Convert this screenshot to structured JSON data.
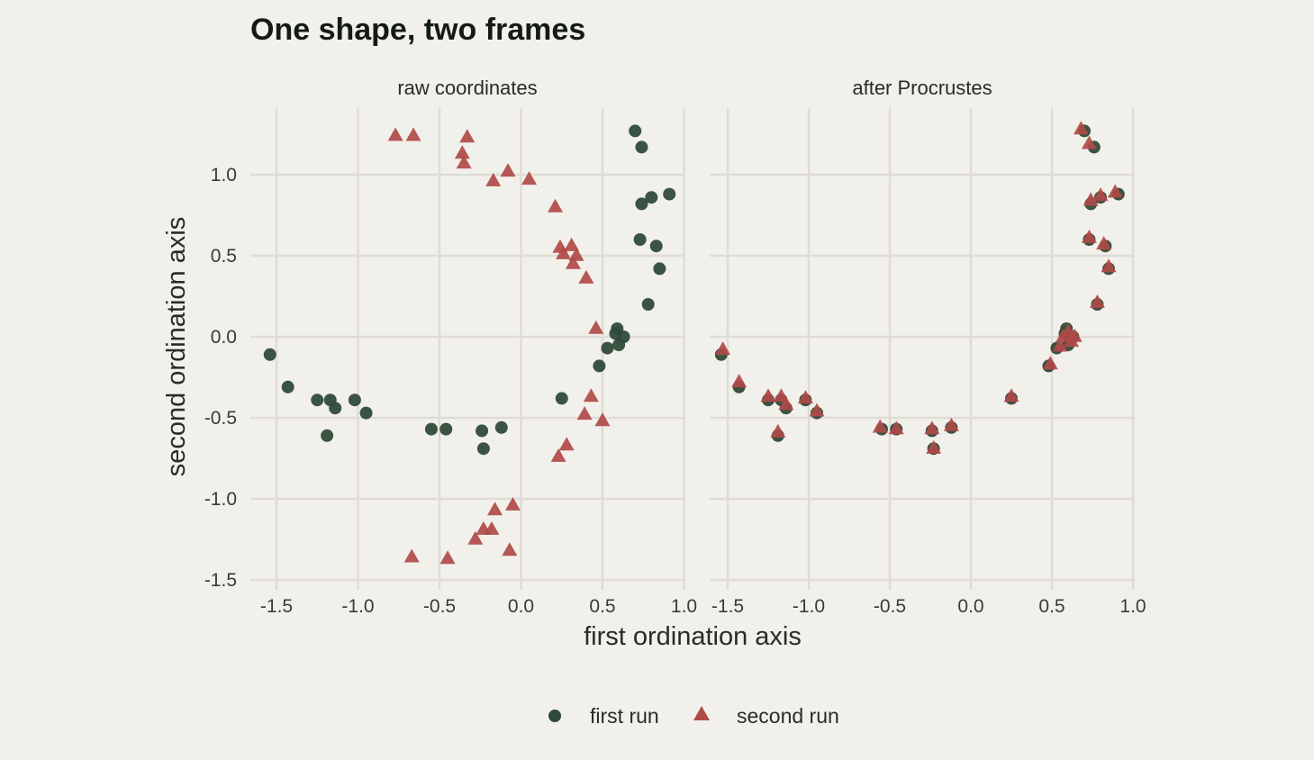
{
  "title": "One shape, two frames",
  "colors": {
    "first_run": "#2f4a3a",
    "second_run": "#b04a48",
    "background": "#f2f0ea",
    "grid": "#dedcd5"
  },
  "chart_data": {
    "type": "scatter",
    "title": "One shape, two frames",
    "xlabel": "first ordination axis",
    "ylabel": "second ordination axis",
    "xlim": [
      -1.6,
      1.0
    ],
    "ylim": [
      -1.5,
      1.4
    ],
    "x_ticks": [
      -1.5,
      -1.0,
      -0.5,
      0.0,
      0.5,
      1.0
    ],
    "x_tick_labels": [
      "-1.5",
      "-1.0",
      "-0.5",
      "0.0",
      "0.5",
      "1.0"
    ],
    "y_ticks": [
      -1.5,
      -1.0,
      -0.5,
      0.0,
      0.5,
      1.0
    ],
    "y_tick_labels": [
      "-1.5",
      "-1.0",
      "-0.5",
      "0.0",
      "0.5",
      "1.0"
    ],
    "grid": true,
    "legend_position": "bottom",
    "legend": [
      {
        "label": "first run",
        "shape": "circle",
        "color": "#2f4a3a"
      },
      {
        "label": "second run",
        "shape": "triangle",
        "color": "#b04a48"
      }
    ],
    "panels": [
      {
        "label": "raw coordinates",
        "series": [
          {
            "name": "first run",
            "shape": "circle",
            "color": "#2f4a3a",
            "points": [
              [
                -1.54,
                -0.11
              ],
              [
                -1.43,
                -0.31
              ],
              [
                -1.25,
                -0.39
              ],
              [
                -1.17,
                -0.39
              ],
              [
                -1.14,
                -0.44
              ],
              [
                -1.19,
                -0.61
              ],
              [
                -1.02,
                -0.39
              ],
              [
                -0.95,
                -0.47
              ],
              [
                -0.55,
                -0.57
              ],
              [
                -0.46,
                -0.57
              ],
              [
                -0.24,
                -0.58
              ],
              [
                -0.23,
                -0.69
              ],
              [
                -0.12,
                -0.56
              ],
              [
                0.25,
                -0.38
              ],
              [
                0.48,
                -0.18
              ],
              [
                0.53,
                -0.07
              ],
              [
                0.58,
                0.02
              ],
              [
                0.59,
                0.05
              ],
              [
                0.6,
                -0.05
              ],
              [
                0.63,
                0.0
              ],
              [
                0.7,
                1.27
              ],
              [
                0.74,
                1.17
              ],
              [
                0.74,
                0.82
              ],
              [
                0.8,
                0.86
              ],
              [
                0.91,
                0.88
              ],
              [
                0.73,
                0.6
              ],
              [
                0.83,
                0.56
              ],
              [
                0.85,
                0.42
              ],
              [
                0.78,
                0.2
              ]
            ]
          },
          {
            "name": "second run",
            "shape": "triangle",
            "color": "#b04a48",
            "points": [
              [
                -0.77,
                1.24
              ],
              [
                -0.66,
                1.24
              ],
              [
                -0.33,
                1.23
              ],
              [
                -0.36,
                1.13
              ],
              [
                -0.35,
                1.07
              ],
              [
                -0.08,
                1.02
              ],
              [
                -0.17,
                0.96
              ],
              [
                0.05,
                0.97
              ],
              [
                0.21,
                0.8
              ],
              [
                0.24,
                0.55
              ],
              [
                0.26,
                0.51
              ],
              [
                0.31,
                0.56
              ],
              [
                0.34,
                0.5
              ],
              [
                0.32,
                0.45
              ],
              [
                0.4,
                0.36
              ],
              [
                0.46,
                0.05
              ],
              [
                0.43,
                -0.37
              ],
              [
                0.39,
                -0.48
              ],
              [
                0.5,
                -0.52
              ],
              [
                0.28,
                -0.67
              ],
              [
                0.23,
                -0.74
              ],
              [
                -0.05,
                -1.04
              ],
              [
                -0.16,
                -1.07
              ],
              [
                -0.18,
                -1.19
              ],
              [
                -0.23,
                -1.19
              ],
              [
                -0.28,
                -1.25
              ],
              [
                -0.07,
                -1.32
              ],
              [
                -0.67,
                -1.36
              ],
              [
                -0.45,
                -1.37
              ]
            ]
          }
        ]
      },
      {
        "label": "after Procrustes",
        "series": [
          {
            "name": "first run",
            "shape": "circle",
            "color": "#2f4a3a",
            "points": [
              [
                -1.54,
                -0.11
              ],
              [
                -1.43,
                -0.31
              ],
              [
                -1.25,
                -0.39
              ],
              [
                -1.17,
                -0.39
              ],
              [
                -1.14,
                -0.44
              ],
              [
                -1.19,
                -0.61
              ],
              [
                -1.02,
                -0.39
              ],
              [
                -0.95,
                -0.47
              ],
              [
                -0.55,
                -0.57
              ],
              [
                -0.46,
                -0.57
              ],
              [
                -0.24,
                -0.58
              ],
              [
                -0.23,
                -0.69
              ],
              [
                -0.12,
                -0.56
              ],
              [
                0.25,
                -0.38
              ],
              [
                0.48,
                -0.18
              ],
              [
                0.53,
                -0.07
              ],
              [
                0.58,
                0.02
              ],
              [
                0.59,
                0.05
              ],
              [
                0.6,
                -0.05
              ],
              [
                0.63,
                0.0
              ],
              [
                0.7,
                1.27
              ],
              [
                0.76,
                1.17
              ],
              [
                0.74,
                0.82
              ],
              [
                0.8,
                0.86
              ],
              [
                0.91,
                0.88
              ],
              [
                0.73,
                0.6
              ],
              [
                0.83,
                0.56
              ],
              [
                0.85,
                0.42
              ],
              [
                0.78,
                0.2
              ]
            ]
          },
          {
            "name": "second run",
            "shape": "triangle",
            "color": "#b04a48",
            "points": [
              [
                -1.53,
                -0.08
              ],
              [
                -1.43,
                -0.28
              ],
              [
                -1.25,
                -0.37
              ],
              [
                -1.17,
                -0.37
              ],
              [
                -1.14,
                -0.42
              ],
              [
                -1.19,
                -0.59
              ],
              [
                -1.02,
                -0.38
              ],
              [
                -0.95,
                -0.46
              ],
              [
                -0.56,
                -0.56
              ],
              [
                -0.46,
                -0.57
              ],
              [
                -0.24,
                -0.57
              ],
              [
                -0.23,
                -0.69
              ],
              [
                -0.12,
                -0.55
              ],
              [
                0.25,
                -0.37
              ],
              [
                0.49,
                -0.17
              ],
              [
                0.55,
                -0.06
              ],
              [
                0.57,
                0.0
              ],
              [
                0.6,
                0.03
              ],
              [
                0.62,
                -0.03
              ],
              [
                0.64,
                0.0
              ],
              [
                0.68,
                1.28
              ],
              [
                0.73,
                1.19
              ],
              [
                0.74,
                0.84
              ],
              [
                0.8,
                0.87
              ],
              [
                0.89,
                0.89
              ],
              [
                0.73,
                0.61
              ],
              [
                0.82,
                0.57
              ],
              [
                0.85,
                0.43
              ],
              [
                0.78,
                0.21
              ]
            ]
          }
        ]
      }
    ]
  }
}
